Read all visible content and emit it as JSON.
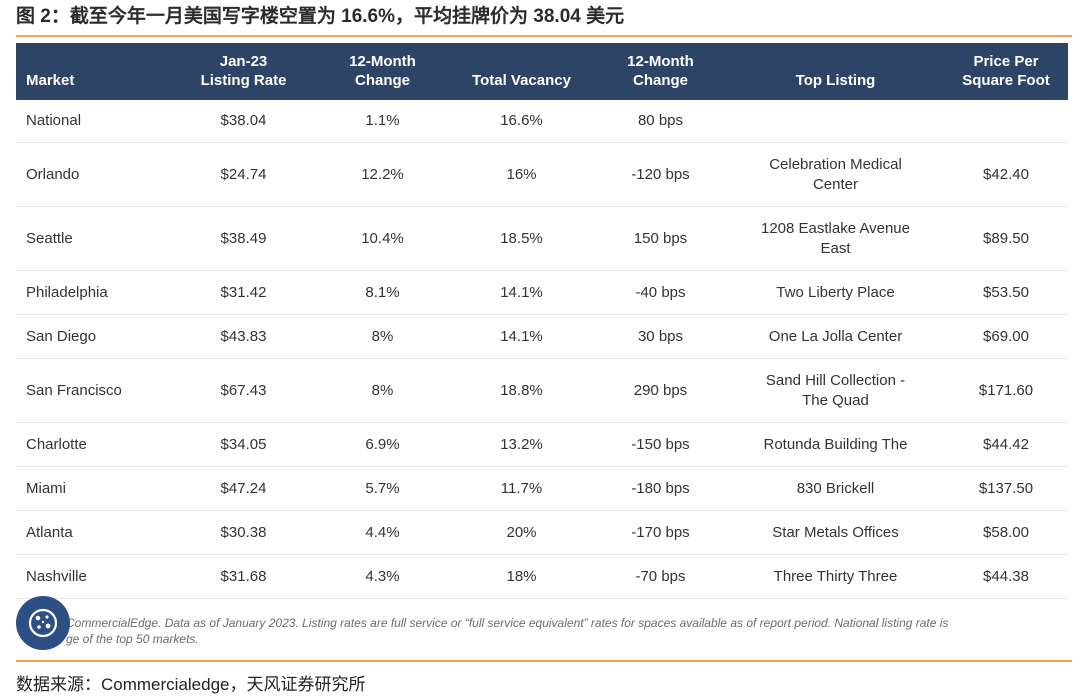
{
  "title": "图 2：截至今年一月美国写字楼空置为 16.6%，平均挂牌价为 38.04 美元",
  "table": {
    "headers": [
      "Market",
      "Jan-23\nListing Rate",
      "12-Month\nChange",
      "Total Vacancy",
      "12-Month\nChange",
      "Top Listing",
      "Price Per\nSquare Foot"
    ],
    "rows": [
      [
        "National",
        "$38.04",
        "1.1%",
        "16.6%",
        "80 bps",
        "",
        ""
      ],
      [
        "Orlando",
        "$24.74",
        "12.2%",
        "16%",
        "-120 bps",
        "Celebration Medical\nCenter",
        "$42.40"
      ],
      [
        "Seattle",
        "$38.49",
        "10.4%",
        "18.5%",
        "150 bps",
        "1208 Eastlake Avenue\nEast",
        "$89.50"
      ],
      [
        "Philadelphia",
        "$31.42",
        "8.1%",
        "14.1%",
        "-40 bps",
        "Two Liberty Place",
        "$53.50"
      ],
      [
        "San Diego",
        "$43.83",
        "8%",
        "14.1%",
        "30 bps",
        "One La Jolla Center",
        "$69.00"
      ],
      [
        "San Francisco",
        "$67.43",
        "8%",
        "18.8%",
        "290 bps",
        "Sand Hill Collection -\nThe Quad",
        "$171.60"
      ],
      [
        "Charlotte",
        "$34.05",
        "6.9%",
        "13.2%",
        "-150 bps",
        "Rotunda Building The",
        "$44.42"
      ],
      [
        "Miami",
        "$47.24",
        "5.7%",
        "11.7%",
        "-180 bps",
        "830 Brickell",
        "$137.50"
      ],
      [
        "Atlanta",
        "$30.38",
        "4.4%",
        "20%",
        "-170 bps",
        "Star Metals Offices",
        "$58.00"
      ],
      [
        "Nashville",
        "$31.68",
        "4.3%",
        "18%",
        "-70 bps",
        "Three Thirty Three",
        "$44.38"
      ]
    ]
  },
  "note": {
    "line1": "CommercialEdge. Data as of January 2023. Listing rates are full service or “full service equivalent” rates for spaces available as of report period. National listing rate is",
    "line2": "ge of the top 50 markets."
  },
  "badge_icon": "cookie-icon",
  "source": "数据来源：Commercialedge，天风证券研究所",
  "colors": {
    "header_bg": "#2e4466",
    "rule": "#f0a35a",
    "badge": "#2e4e86"
  }
}
